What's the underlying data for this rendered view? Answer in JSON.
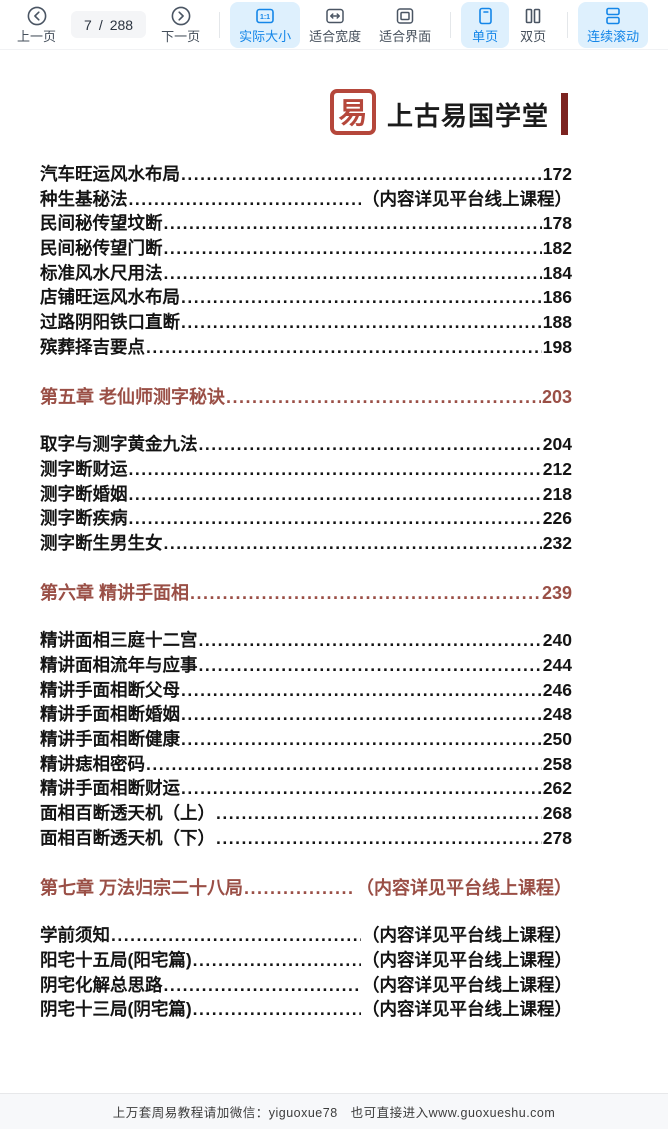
{
  "toolbar": {
    "prev_label": "上一页",
    "next_label": "下一页",
    "page_current": "7",
    "page_separator": "/",
    "page_total": "288",
    "actual_size_label": "实际大小",
    "fit_width_label": "适合宽度",
    "fit_page_label": "适合界面",
    "single_page_label": "单页",
    "double_page_label": "双页",
    "continuous_scroll_label": "连续滚动",
    "accent_color": "#1486e8",
    "active_bg_color": "#def0fd"
  },
  "page": {
    "logo_text": "上古易国学堂",
    "logo_seal_glyph": "易",
    "heading_color": "#9a4f46",
    "seal_color": "#b5473b",
    "toc_groups": [
      {
        "heading": null,
        "entries": [
          {
            "title": "汽车旺运风水布局",
            "ref": "172"
          },
          {
            "title": "种生基秘法",
            "ref": "（内容详见平台线上课程）"
          },
          {
            "title": "民间秘传望坟断",
            "ref": "178"
          },
          {
            "title": "民间秘传望门断",
            "ref": "182"
          },
          {
            "title": "标准风水尺用法",
            "ref": "184"
          },
          {
            "title": "店铺旺运风水布局",
            "ref": "186"
          },
          {
            "title": "过路阴阳铁口直断",
            "ref": "188"
          },
          {
            "title": "殡葬择吉要点",
            "ref": "198"
          }
        ]
      },
      {
        "heading": {
          "title": "第五章 老仙师测字秘诀",
          "ref": "203"
        },
        "entries": [
          {
            "title": "取字与测字黄金九法",
            "ref": "204"
          },
          {
            "title": "测字断财运",
            "ref": "212"
          },
          {
            "title": "测字断婚姻",
            "ref": "218"
          },
          {
            "title": "测字断疾病",
            "ref": "226"
          },
          {
            "title": "测字断生男生女",
            "ref": "232"
          }
        ]
      },
      {
        "heading": {
          "title": "第六章 精讲手面相",
          "ref": "239"
        },
        "entries": [
          {
            "title": "精讲面相三庭十二宫",
            "ref": "240"
          },
          {
            "title": "精讲面相流年与应事",
            "ref": "244"
          },
          {
            "title": "精讲手面相断父母",
            "ref": "246"
          },
          {
            "title": "精讲手面相断婚姻",
            "ref": "248"
          },
          {
            "title": "精讲手面相断健康",
            "ref": "250"
          },
          {
            "title": "精讲痣相密码",
            "ref": "258"
          },
          {
            "title": "精讲手面相断财运",
            "ref": "262"
          },
          {
            "title": "面相百断透天机（上）",
            "ref": "268"
          },
          {
            "title": "面相百断透天机（下）",
            "ref": "278"
          }
        ]
      },
      {
        "heading": {
          "title": "第七章 万法归宗二十八局",
          "ref": "（内容详见平台线上课程）"
        },
        "entries": [
          {
            "title": "学前须知",
            "ref": "（内容详见平台线上课程）"
          },
          {
            "title": "阳宅十五局(阳宅篇)",
            "ref": "（内容详见平台线上课程）"
          },
          {
            "title": "阴宅化解总思路",
            "ref": "（内容详见平台线上课程）"
          },
          {
            "title": "阴宅十三局(阴宅篇)",
            "ref": "（内容详见平台线上课程）"
          }
        ]
      }
    ]
  },
  "footer": {
    "text": "上万套周易教程请加微信：yiguoxue78　也可直接进入www.guoxueshu.com"
  }
}
